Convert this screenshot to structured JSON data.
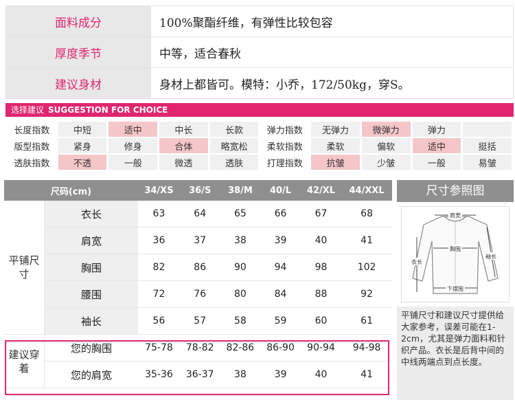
{
  "info": [
    {
      "key": "面料成分",
      "value": "100%聚酯纤维，有弹性比较包容"
    },
    {
      "key": "厚度季节",
      "value": "中等，适合春秋"
    },
    {
      "key": "建议身材",
      "value": "身材上都皆可。模特：小乔，172/50kg，穿S。"
    }
  ],
  "banner": {
    "cn": "选择建议",
    "en": "SUGGESTION FOR CHOICE"
  },
  "suggestion": {
    "rows": [
      [
        {
          "label": "长度指数",
          "options": [
            "中短",
            "适中",
            "中长",
            "长款"
          ],
          "selected": "适中"
        },
        {
          "label": "弹力指数",
          "options": [
            "无弹力",
            "微弹力",
            "弹力",
            ""
          ],
          "selected": "微弹力"
        }
      ],
      [
        {
          "label": "版型指数",
          "options": [
            "紧身",
            "修身",
            "合体",
            "略宽松"
          ],
          "selected": "合体"
        },
        {
          "label": "柔软指数",
          "options": [
            "柔软",
            "偏软",
            "适中",
            "挺括"
          ],
          "selected": "适中"
        }
      ],
      [
        {
          "label": "透肤指数",
          "options": [
            "不透",
            "一般",
            "微透",
            "透肤"
          ],
          "selected": "不透"
        },
        {
          "label": "打理指数",
          "options": [
            "抗皱",
            "少皱",
            "一般",
            "易皱"
          ],
          "selected": "抗皱"
        }
      ]
    ]
  },
  "size_table": {
    "header": [
      "尺码(cm)",
      "34/XS",
      "36/S",
      "38/M",
      "40/L",
      "42/XL",
      "44/XXL"
    ],
    "flat_group": "平铺尺寸",
    "flat_rows": [
      {
        "item": "衣长",
        "values": [
          "63",
          "64",
          "65",
          "66",
          "67",
          "68"
        ]
      },
      {
        "item": "肩宽",
        "values": [
          "36",
          "37",
          "38",
          "39",
          "40",
          "41"
        ]
      },
      {
        "item": "胸围",
        "values": [
          "82",
          "86",
          "90",
          "94",
          "98",
          "102"
        ]
      },
      {
        "item": "腰围",
        "values": [
          "72",
          "76",
          "80",
          "84",
          "88",
          "92"
        ]
      },
      {
        "item": "袖长",
        "values": [
          "56",
          "57",
          "58",
          "59",
          "60",
          "61"
        ]
      }
    ],
    "rec_group": "建议穿着",
    "rec_rows": [
      {
        "item": "您的胸围",
        "values": [
          "75-78",
          "78-82",
          "82-86",
          "86-90",
          "90-94",
          "94-98"
        ]
      },
      {
        "item": "您的肩宽",
        "values": [
          "35-36",
          "36-37",
          "38",
          "39",
          "40",
          "41"
        ]
      }
    ]
  },
  "reference": {
    "title": "尺寸参照图",
    "diagram_labels": {
      "shoulder": "肩宽",
      "length": "衣长",
      "chest": "胸围",
      "sleeve": "袖长",
      "hem": "下摆围"
    },
    "note": "平铺尺寸和建议尺寸提供给大家参考，误差可能在1-2cm，尤其是弹力面料和针织产品。衣长是后背中间的中线两端点到点长度。"
  },
  "colors": {
    "accent": "#e0266f",
    "selected": "#f5c6c8",
    "header_gray": "#8f8f8f"
  }
}
